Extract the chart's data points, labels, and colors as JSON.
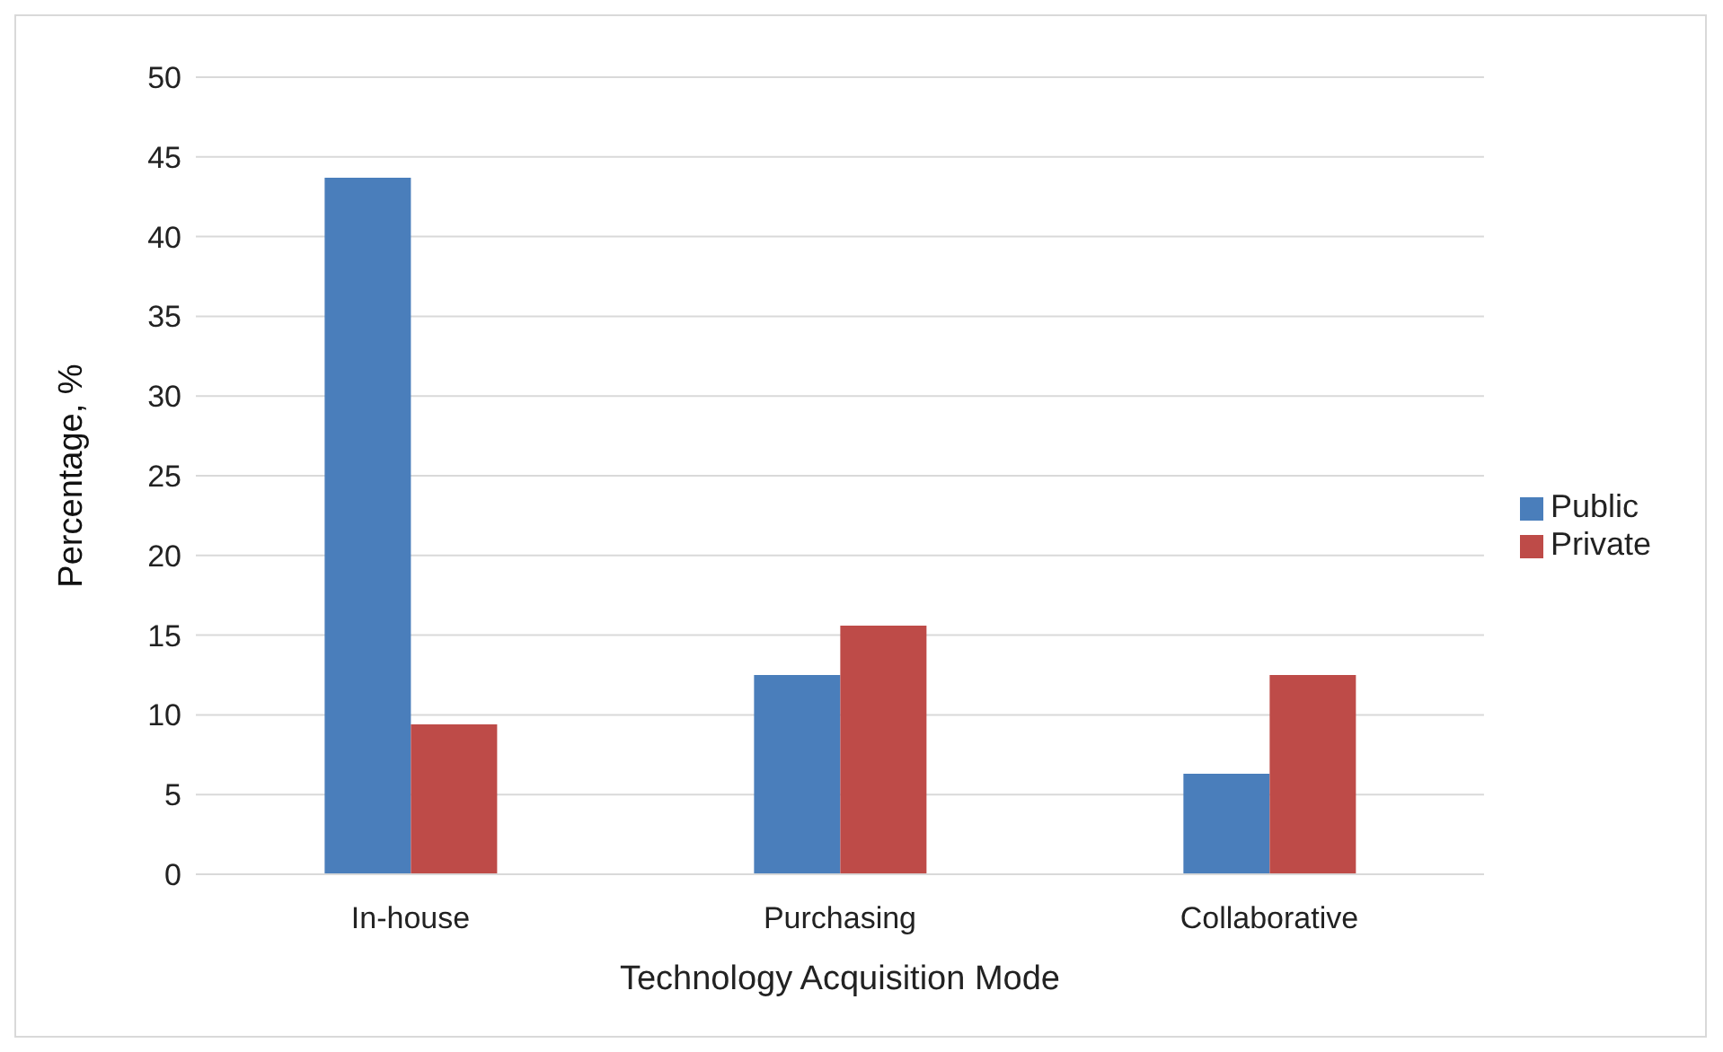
{
  "chart_data": {
    "type": "bar",
    "xlabel": "Technology Acquisition Mode",
    "ylabel": "Percentage, %",
    "categories": [
      "In-house",
      "Purchasing",
      "Collaborative"
    ],
    "series": [
      {
        "name": "Public",
        "color": "#4a7ebb",
        "values": [
          43.7,
          12.5,
          6.3
        ]
      },
      {
        "name": "Private",
        "color": "#be4b48",
        "values": [
          9.4,
          15.6,
          12.5
        ]
      }
    ],
    "ylim": [
      0,
      50
    ],
    "yticks": [
      0,
      5,
      10,
      15,
      20,
      25,
      30,
      35,
      40,
      45,
      50
    ],
    "grid": "y",
    "legend": "right"
  }
}
